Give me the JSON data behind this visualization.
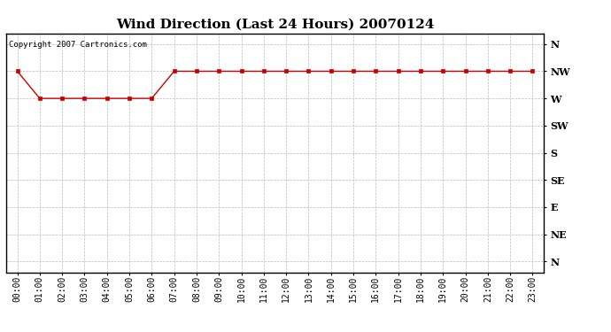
{
  "title": "Wind Direction (Last 24 Hours) 20070124",
  "copyright_text": "Copyright 2007 Cartronics.com",
  "hours": [
    0,
    1,
    2,
    3,
    4,
    5,
    6,
    7,
    8,
    9,
    10,
    11,
    12,
    13,
    14,
    15,
    16,
    17,
    18,
    19,
    20,
    21,
    22,
    23
  ],
  "x_labels": [
    "00:00",
    "01:00",
    "02:00",
    "03:00",
    "04:00",
    "05:00",
    "06:00",
    "07:00",
    "08:00",
    "09:00",
    "10:00",
    "11:00",
    "12:00",
    "13:00",
    "14:00",
    "15:00",
    "16:00",
    "17:00",
    "18:00",
    "19:00",
    "20:00",
    "21:00",
    "22:00",
    "23:00"
  ],
  "y_labels": [
    "N",
    "NW",
    "W",
    "SW",
    "S",
    "SE",
    "E",
    "NE",
    "N"
  ],
  "wind_values": [
    1,
    2,
    2,
    2,
    2,
    2,
    2,
    1,
    1,
    1,
    1,
    1,
    1,
    1,
    1,
    1,
    1,
    1,
    1,
    1,
    1,
    1,
    1,
    1
  ],
  "line_color": "#cc0000",
  "marker": "s",
  "marker_size": 3,
  "background_color": "#ffffff",
  "grid_color": "#bbbbbb",
  "title_fontsize": 11,
  "label_fontsize": 8,
  "tick_fontsize": 7,
  "copyright_fontsize": 6.5
}
